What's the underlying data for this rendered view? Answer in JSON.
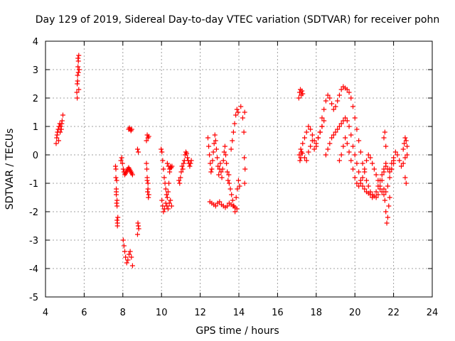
{
  "chart_data": {
    "type": "scatter",
    "title": "Day 129 of 2019, Sidereal Day-to-day VTEC variation (SDTVAR) for receiver pohn",
    "xlabel": "GPS time / hours",
    "ylabel": "SDTVAR / TECUs",
    "xlim": [
      4,
      24
    ],
    "ylim": [
      -5,
      4
    ],
    "xticks": [
      "4",
      "6",
      "8",
      "10",
      "12",
      "14",
      "16",
      "18",
      "20",
      "22",
      "24"
    ],
    "yticks": [
      "-5",
      "-4",
      "-3",
      "-2",
      "-1",
      "0",
      "1",
      "2",
      "3",
      "4"
    ],
    "grid": true,
    "marker": "+",
    "color": "#ff0000",
    "series": [
      {
        "name": "SDTVAR",
        "x": [
          4.55,
          4.58,
          4.62,
          4.66,
          4.7,
          4.74,
          4.78,
          4.82,
          4.86,
          4.6,
          4.68,
          4.76,
          4.84,
          4.9,
          5.62,
          5.64,
          5.66,
          5.68,
          5.7,
          5.72,
          5.74,
          5.66,
          5.7,
          5.64,
          5.72,
          5.68,
          7.62,
          7.64,
          7.66,
          7.68,
          7.7,
          7.72,
          7.66,
          7.7,
          7.64,
          7.68,
          7.72,
          7.66,
          7.7,
          7.74,
          7.9,
          7.94,
          7.98,
          8.02,
          8.06,
          8.1,
          8.14,
          8.18,
          8.22,
          8.26,
          8.3,
          8.34,
          8.38,
          8.42,
          8.46,
          8.5,
          8.02,
          8.06,
          8.1,
          8.14,
          8.2,
          8.26,
          8.32,
          8.38,
          8.44,
          8.5,
          8.3,
          8.34,
          8.38,
          8.42,
          8.46,
          8.76,
          8.8,
          8.78,
          8.82,
          8.76,
          8.8,
          9.22,
          9.26,
          9.3,
          9.34,
          9.22,
          9.26,
          9.3,
          9.28,
          9.32,
          9.24,
          9.3,
          9.26,
          9.34,
          9.98,
          10.02,
          10.06,
          10.1,
          10.14,
          10.18,
          10.22,
          10.26,
          10.3,
          10.34,
          10.38,
          10.42,
          10.46,
          10.5,
          10.02,
          10.06,
          10.1,
          10.16,
          10.22,
          10.28,
          10.34,
          10.4,
          10.46,
          10.52,
          10.3,
          10.36,
          10.42,
          10.48,
          10.54,
          10.9,
          10.94,
          10.98,
          11.02,
          11.06,
          11.1,
          11.14,
          11.18,
          11.22,
          11.26,
          11.3,
          11.34,
          11.38,
          11.42,
          11.46,
          11.5,
          11.54,
          12.4,
          12.44,
          12.48,
          12.52,
          12.56,
          12.6,
          12.64,
          12.68,
          12.72,
          12.76,
          12.8,
          12.84,
          12.88,
          12.92,
          12.96,
          13.0,
          13.04,
          13.08,
          13.12,
          13.16,
          13.2,
          13.24,
          13.28,
          13.32,
          13.36,
          13.4,
          13.44,
          13.48,
          12.5,
          12.6,
          12.7,
          12.8,
          12.9,
          13.0,
          13.1,
          13.2,
          13.3,
          13.4,
          13.5,
          13.6,
          13.7,
          13.8,
          13.9,
          13.5,
          13.56,
          13.62,
          13.68,
          13.74,
          13.8,
          13.86,
          13.92,
          13.98,
          14.04,
          13.6,
          13.66,
          13.72,
          13.78,
          13.84,
          13.9,
          13.96,
          14.1,
          14.2,
          14.26,
          14.3,
          14.28,
          14.32,
          14.3,
          17.1,
          17.14,
          17.18,
          17.22,
          17.26,
          17.3,
          17.12,
          17.16,
          17.2,
          17.24,
          17.28,
          17.2,
          17.3,
          17.4,
          17.5,
          17.6,
          17.7,
          17.8,
          17.9,
          18.0,
          18.1,
          18.2,
          18.3,
          17.4,
          17.5,
          17.6,
          17.7,
          17.8,
          17.9,
          18.0,
          18.1,
          18.2,
          18.3,
          18.4,
          18.3,
          18.4,
          18.5,
          18.6,
          18.7,
          18.8,
          18.9,
          19.0,
          19.1,
          19.2,
          19.3,
          19.4,
          19.5,
          19.6,
          19.7,
          19.8,
          19.9,
          20.0,
          20.1,
          20.2,
          20.3,
          20.4,
          20.5,
          20.6,
          20.7,
          20.8,
          20.9,
          21.0,
          21.1,
          21.2,
          21.3,
          21.4,
          21.5,
          21.6,
          21.7,
          21.8,
          21.9,
          22.0,
          18.5,
          18.6,
          18.7,
          18.8,
          18.9,
          19.0,
          19.1,
          19.2,
          19.3,
          19.4,
          19.5,
          19.6,
          19.7,
          19.8,
          19.9,
          20.0,
          20.1,
          20.2,
          20.3,
          20.4,
          20.5,
          20.6,
          20.7,
          20.8,
          20.9,
          21.0,
          21.1,
          21.2,
          21.3,
          21.4,
          21.5,
          21.6,
          19.2,
          19.3,
          19.4,
          19.5,
          19.6,
          19.7,
          19.8,
          19.9,
          20.0,
          20.1,
          20.2,
          20.3,
          20.4,
          20.5,
          20.6,
          20.7,
          20.8,
          20.9,
          21.0,
          21.1,
          21.2,
          21.3,
          21.4,
          21.5,
          21.6,
          21.7,
          21.8,
          21.9,
          22.0,
          21.5,
          21.55,
          21.6,
          21.65,
          21.7,
          21.75,
          21.8,
          21.5,
          21.55,
          21.6,
          21.8,
          21.9,
          22.0,
          22.1,
          22.2,
          22.3,
          22.4,
          22.5,
          22.6,
          22.7,
          22.5,
          22.55,
          22.6,
          22.65,
          22.7,
          22.6,
          22.65
        ],
        "y": [
          0.4,
          0.6,
          0.8,
          0.9,
          1.0,
          1.1,
          1.0,
          0.9,
          1.2,
          0.7,
          0.5,
          0.8,
          1.1,
          1.4,
          2.2,
          2.5,
          2.8,
          3.1,
          3.3,
          3.5,
          3.0,
          2.6,
          2.9,
          2.0,
          2.3,
          3.4,
          -0.4,
          -0.8,
          -1.4,
          -1.7,
          -2.3,
          -2.5,
          -1.2,
          -1.6,
          -0.5,
          -0.9,
          -2.4,
          -1.3,
          -1.8,
          -2.2,
          -0.2,
          -0.1,
          -0.3,
          -0.5,
          -0.6,
          -0.7,
          -0.65,
          -0.6,
          -0.55,
          -0.5,
          -0.45,
          -0.5,
          -0.55,
          -0.6,
          -0.65,
          -0.7,
          -3.0,
          -3.2,
          -3.4,
          -3.6,
          -3.8,
          -3.7,
          -3.5,
          -3.4,
          -3.6,
          -3.9,
          0.9,
          0.95,
          0.9,
          0.85,
          0.9,
          0.2,
          0.1,
          -2.4,
          -2.6,
          -2.8,
          -2.5,
          0.5,
          0.7,
          0.6,
          0.65,
          -0.3,
          -0.8,
          -1.0,
          -1.3,
          -1.5,
          -0.5,
          -1.2,
          -0.9,
          -1.4,
          0.2,
          0.1,
          -0.2,
          -0.5,
          -0.8,
          -1.0,
          -1.2,
          -1.4,
          -1.5,
          -1.3,
          -1.0,
          -0.6,
          -0.4,
          -0.45,
          -1.6,
          -1.8,
          -2.0,
          -1.9,
          -1.7,
          -1.8,
          -1.9,
          -1.7,
          -1.6,
          -1.8,
          -0.3,
          -0.4,
          -0.5,
          -0.45,
          -0.4,
          -0.9,
          -1.0,
          -0.8,
          -0.6,
          -0.4,
          -0.5,
          -0.3,
          -0.2,
          0.0,
          0.1,
          0.05,
          -0.1,
          -0.2,
          -0.3,
          -0.4,
          -0.3,
          -0.2,
          0.6,
          0.3,
          0.0,
          -0.3,
          -0.6,
          -0.5,
          -0.2,
          0.1,
          0.4,
          0.7,
          0.5,
          0.2,
          -0.1,
          -0.4,
          -0.7,
          -0.5,
          -0.3,
          -0.6,
          -0.8,
          -0.5,
          -0.2,
          0.1,
          0.3,
          0.0,
          -0.3,
          -0.6,
          -0.9,
          -0.7,
          -1.65,
          -1.7,
          -1.75,
          -1.8,
          -1.7,
          -1.65,
          -1.75,
          -1.8,
          -1.85,
          -1.8,
          -1.7,
          -1.75,
          -1.8,
          -1.85,
          -1.9,
          -1.0,
          -1.2,
          -1.4,
          -1.6,
          -1.8,
          -2.0,
          -1.5,
          -1.2,
          -0.9,
          -1.1,
          0.2,
          0.5,
          0.8,
          1.1,
          1.4,
          1.6,
          1.5,
          1.7,
          1.3,
          0.8,
          1.5,
          -0.1,
          -0.5,
          -1.0,
          2.0,
          2.2,
          2.3,
          2.1,
          2.25,
          2.15,
          0.0,
          -0.2,
          -0.1,
          0.1,
          0.05,
          0.2,
          0.4,
          0.6,
          0.8,
          1.0,
          0.9,
          0.7,
          0.5,
          0.3,
          0.6,
          0.8,
          1.0,
          -0.1,
          -0.2,
          0.1,
          0.3,
          0.5,
          0.2,
          0.4,
          0.6,
          0.8,
          1.0,
          1.2,
          1.3,
          1.6,
          1.9,
          2.1,
          2.0,
          1.8,
          1.6,
          1.7,
          1.9,
          2.1,
          2.3,
          2.4,
          2.35,
          2.3,
          2.2,
          2.0,
          1.7,
          1.3,
          0.9,
          0.5,
          0.1,
          -0.3,
          -0.6,
          -0.9,
          -1.1,
          -1.3,
          -1.4,
          -1.45,
          -1.5,
          -1.4,
          -1.2,
          -0.9,
          -0.6,
          -0.4,
          -0.5,
          -0.6,
          -0.5,
          -0.3,
          0.0,
          0.2,
          0.4,
          0.6,
          0.7,
          0.8,
          0.9,
          1.0,
          1.1,
          1.2,
          1.3,
          1.2,
          1.0,
          0.7,
          0.3,
          0.0,
          -0.3,
          -0.6,
          -0.9,
          -1.1,
          -1.2,
          -1.3,
          -1.35,
          -1.4,
          -1.5,
          -1.45,
          -1.3,
          -1.1,
          -0.9,
          -0.7,
          -0.5,
          -0.3,
          -0.2,
          0.0,
          0.3,
          0.6,
          0.4,
          0.1,
          -0.2,
          -0.5,
          -0.8,
          -1.0,
          -1.1,
          -1.0,
          -0.8,
          -0.5,
          -0.2,
          0.0,
          -0.1,
          -0.3,
          -0.5,
          -0.7,
          -0.9,
          -1.1,
          -1.3,
          -1.4,
          -1.3,
          -1.1,
          -0.8,
          -0.5,
          -0.2,
          -1.2,
          -1.6,
          -2.0,
          -2.4,
          -2.2,
          -1.8,
          -1.5,
          0.6,
          0.8,
          0.3,
          -0.5,
          -0.3,
          -0.1,
          0.1,
          0.0,
          -0.2,
          -0.4,
          -0.3,
          -0.1,
          0.0,
          0.2,
          0.4,
          0.6,
          0.5,
          0.3,
          -0.8,
          -1.0
        ]
      }
    ]
  }
}
